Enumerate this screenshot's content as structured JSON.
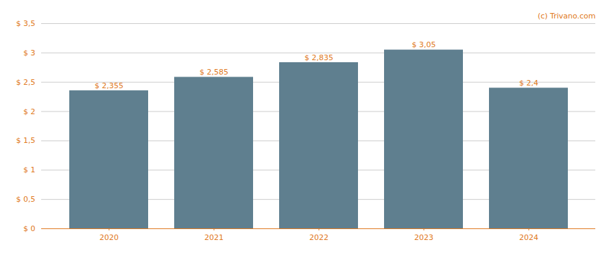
{
  "chart_data": {
    "type": "bar",
    "categories": [
      "2020",
      "2021",
      "2022",
      "2023",
      "2024"
    ],
    "values": [
      2.355,
      2.585,
      2.835,
      3.05,
      2.4
    ],
    "value_labels": [
      "$ 2,355",
      "$ 2,585",
      "$ 2,835",
      "$ 3,05",
      "$ 2,4"
    ],
    "data_labels": true,
    "color": "#5f7f8f",
    "ylim": [
      0,
      3.5
    ],
    "yticks": [
      {
        "value": 0,
        "label": "$ 0"
      },
      {
        "value": 0.5,
        "label": "$ 0,5"
      },
      {
        "value": 1.0,
        "label": "$ 1"
      },
      {
        "value": 1.5,
        "label": "$ 1,5"
      },
      {
        "value": 2.0,
        "label": "$ 2"
      },
      {
        "value": 2.5,
        "label": "$ 2,5"
      },
      {
        "value": 3.0,
        "label": "$ 3"
      },
      {
        "value": 3.5,
        "label": "$ 3,5"
      }
    ],
    "grid": true,
    "annotations": [
      "(c) Trivano.com"
    ]
  }
}
